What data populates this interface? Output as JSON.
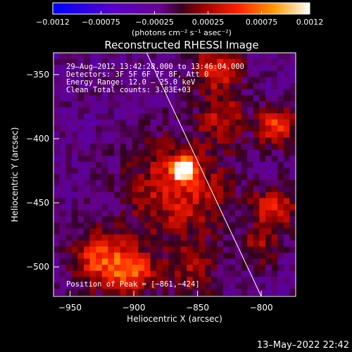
{
  "chart_data": {
    "type": "heatmap",
    "title": "Reconstructed RHESSI Image",
    "xlabel": "Heliocentric X (arcsec)",
    "ylabel": "Heliocentric Y (arcsec)",
    "xlim": [
      -963,
      -773
    ],
    "ylim": [
      -523,
      -333
    ],
    "xticks": [
      {
        "value": -950,
        "label": "−950"
      },
      {
        "value": -900,
        "label": "−900"
      },
      {
        "value": -850,
        "label": "−850"
      },
      {
        "value": -800,
        "label": "−800"
      }
    ],
    "yticks": [
      {
        "value": -350,
        "label": "−350"
      },
      {
        "value": -400,
        "label": "−400"
      },
      {
        "value": -450,
        "label": "−450"
      },
      {
        "value": -500,
        "label": "−500"
      }
    ],
    "colorbar": {
      "range": [
        -0.0012,
        0.0012
      ],
      "ticks": [
        {
          "value": -0.0012,
          "label": "−0.0012"
        },
        {
          "value": -0.00075,
          "label": "−0.00075"
        },
        {
          "value": -0.00025,
          "label": "−0.00025"
        },
        {
          "value": 0.00025,
          "label": "0.00025"
        },
        {
          "value": 0.00075,
          "label": "0.00075"
        },
        {
          "value": 0.0012,
          "label": "0.0012"
        }
      ],
      "units_label": "(photons cm⁻² s⁻¹ asec⁻²)"
    },
    "annotations": [
      "29–Aug–2012 13:42:28.000 to 13:46:04.000",
      "Detectors: 3F 5F 6F 7F 8F, Att 0",
      "Energy Range: 12.0 – 25.0 keV",
      "Clean    Total counts: 3.83E+03"
    ],
    "peak": {
      "label": "Position of Peak = [−861,−424]",
      "x": -861,
      "y": -424
    },
    "limb_line": [
      {
        "x": -890,
        "y": -333
      },
      {
        "x": -800,
        "y": -523
      }
    ]
  },
  "footer_timestamp": "13–May–2022 22:42"
}
